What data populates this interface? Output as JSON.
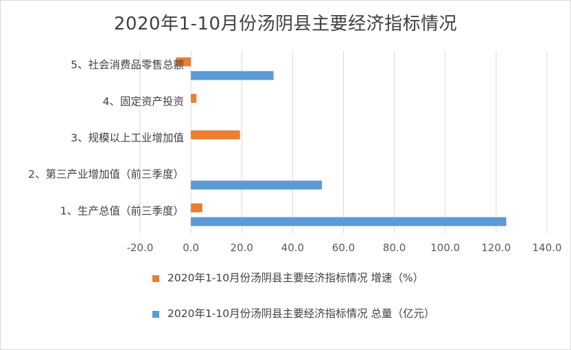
{
  "chart_data": {
    "type": "bar",
    "orientation": "horizontal",
    "title": "2020年1-10月份汤阴县主要经济指标情况",
    "categories": [
      "1、生产总值（前三季度）",
      "2、第三产业增加值（前三季度）",
      "3、规模以上工业增加值",
      "4、固定资产投资",
      "5、社会消费品零售总额"
    ],
    "series": [
      {
        "name": "2020年1-10月份汤阴县主要经济指标情况 增速（%）",
        "color": "#ED7D31",
        "values": [
          4.5,
          null,
          19.3,
          2.2,
          -5.8
        ]
      },
      {
        "name": "2020年1-10月份汤阴县主要经济指标情况 总量（亿元）",
        "color": "#5B9BD5",
        "values": [
          124.0,
          51.5,
          null,
          null,
          32.5
        ]
      }
    ],
    "xlim": [
      -20,
      140
    ],
    "xticks": [
      "-20.0",
      "0.0",
      "20.0",
      "40.0",
      "60.0",
      "80.0",
      "100.0",
      "120.0",
      "140.0"
    ],
    "grid": true,
    "legend_position": "bottom"
  }
}
